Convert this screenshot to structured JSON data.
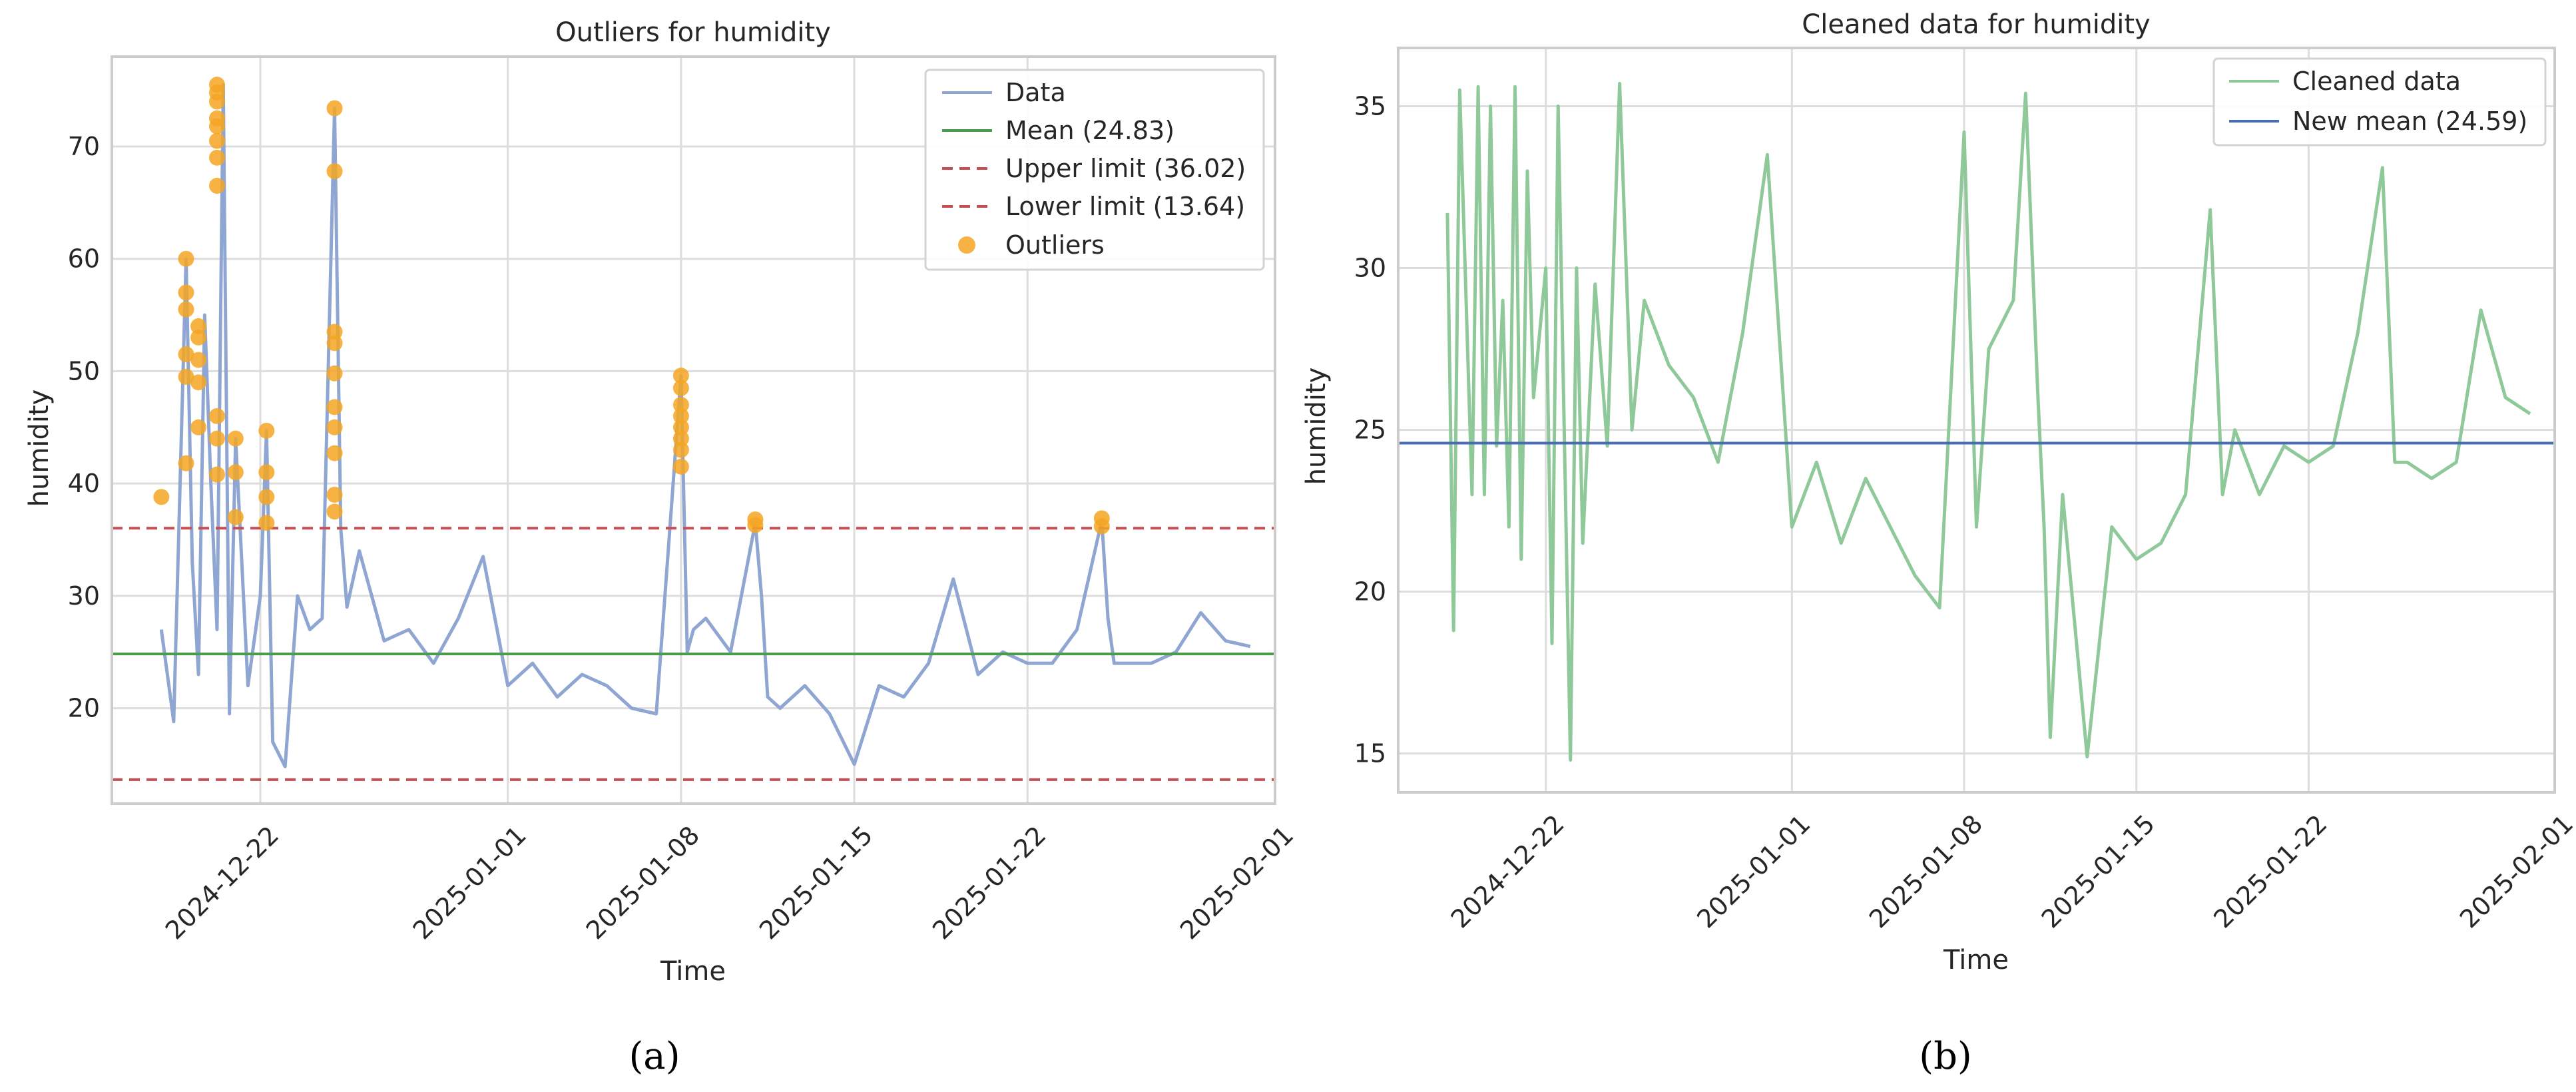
{
  "chart_data": [
    {
      "type": "line",
      "title": "Outliers for humidity",
      "xlabel": "Time",
      "ylabel": "humidity",
      "panel_label": "(a)",
      "xlim": [
        "2024-12-16",
        "2025-02-01"
      ],
      "ylim": [
        11.5,
        78
      ],
      "x_ticks": [
        "2024-12-22",
        "2025-01-01",
        "2025-01-08",
        "2025-01-15",
        "2025-01-22",
        "2025-02-01"
      ],
      "y_ticks": [
        20,
        30,
        40,
        50,
        60,
        70
      ],
      "grid": true,
      "legend_position": "top-right",
      "legend": [
        "Data",
        "Mean (24.83)",
        "Upper limit (36.02)",
        "Lower limit (13.64)",
        "Outliers"
      ],
      "series": [
        {
          "name": "Data",
          "color": "#8fa6d2",
          "x": [
            "2024-12-18",
            "2024-12-18T12",
            "2024-12-19",
            "2024-12-19T06",
            "2024-12-19T12",
            "2024-12-19T18",
            "2024-12-20",
            "2024-12-20T06",
            "2024-12-20T12",
            "2024-12-20T18",
            "2024-12-21",
            "2024-12-21T12",
            "2024-12-22",
            "2024-12-22T06",
            "2024-12-22T12",
            "2024-12-23",
            "2024-12-23T12",
            "2024-12-24",
            "2024-12-24T12",
            "2024-12-25",
            "2024-12-25T06",
            "2024-12-25T12",
            "2024-12-26",
            "2024-12-27",
            "2024-12-28",
            "2024-12-29",
            "2024-12-30",
            "2024-12-31",
            "2025-01-01",
            "2025-01-02",
            "2025-01-03",
            "2025-01-04",
            "2025-01-05",
            "2025-01-06",
            "2025-01-07",
            "2025-01-08",
            "2025-01-08T06",
            "2025-01-08T12",
            "2025-01-09",
            "2025-01-10",
            "2025-01-11",
            "2025-01-11T06",
            "2025-01-11T12",
            "2025-01-12",
            "2025-01-13",
            "2025-01-14",
            "2025-01-15",
            "2025-01-16",
            "2025-01-17",
            "2025-01-18",
            "2025-01-19",
            "2025-01-20",
            "2025-01-21",
            "2025-01-22",
            "2025-01-23",
            "2025-01-24",
            "2025-01-25",
            "2025-01-25T06",
            "2025-01-25T12",
            "2025-01-26",
            "2025-01-27",
            "2025-01-28",
            "2025-01-29",
            "2025-01-30",
            "2025-01-31"
          ],
          "values": [
            27,
            18.8,
            60,
            33,
            23,
            55,
            40,
            27,
            75.5,
            19.5,
            44,
            22,
            30,
            44.7,
            17,
            14.8,
            30,
            27,
            28,
            73.4,
            36,
            29,
            34,
            26,
            27,
            24,
            28,
            33.5,
            22,
            24,
            21,
            23,
            22,
            20,
            19.5,
            49.6,
            25,
            27,
            28,
            25,
            36.5,
            30,
            21,
            20,
            22,
            19.5,
            15,
            22,
            21,
            24,
            31.5,
            23,
            25,
            24,
            24,
            27,
            36.7,
            28,
            24,
            24,
            24,
            25,
            28.5,
            26,
            25.5
          ]
        },
        {
          "name": "Mean (24.83)",
          "color": "#4c9a4c",
          "y": 24.83
        },
        {
          "name": "Upper limit (36.02)",
          "color": "#c44e52",
          "y": 36.02
        },
        {
          "name": "Lower limit (13.64)",
          "color": "#c44e52",
          "y": 13.64
        },
        {
          "name": "Outliers",
          "color": "#f5a623",
          "x": [
            "2024-12-18",
            "2024-12-19",
            "2024-12-19",
            "2024-12-19",
            "2024-12-19",
            "2024-12-19",
            "2024-12-19",
            "2024-12-19T12",
            "2024-12-19T12",
            "2024-12-19T12",
            "2024-12-19T12",
            "2024-12-19T12",
            "2024-12-20T06",
            "2024-12-20T06",
            "2024-12-20T06",
            "2024-12-20T06",
            "2024-12-20T06",
            "2024-12-20T06",
            "2024-12-20T06",
            "2024-12-20T06",
            "2024-12-20T06",
            "2024-12-20T06",
            "2024-12-20T06",
            "2024-12-21",
            "2024-12-21",
            "2024-12-21",
            "2024-12-22T06",
            "2024-12-22T06",
            "2024-12-22T06",
            "2024-12-22T06",
            "2024-12-25",
            "2024-12-25",
            "2024-12-25",
            "2024-12-25",
            "2024-12-25",
            "2024-12-25",
            "2024-12-25",
            "2024-12-25",
            "2024-12-25",
            "2024-12-25",
            "2025-01-08",
            "2025-01-08",
            "2025-01-08",
            "2025-01-08",
            "2025-01-08",
            "2025-01-08",
            "2025-01-08",
            "2025-01-08",
            "2025-01-11",
            "2025-01-11",
            "2025-01-25",
            "2025-01-25"
          ],
          "values": [
            38.8,
            60,
            57,
            55.5,
            51.5,
            49.5,
            41.8,
            54,
            53,
            51,
            49,
            45,
            75.5,
            74.8,
            74,
            72.5,
            71.8,
            70.5,
            69,
            66.5,
            46,
            44,
            40.8,
            44,
            41,
            37,
            44.7,
            41,
            38.8,
            36.5,
            73.4,
            67.8,
            53.5,
            52.5,
            49.8,
            46.8,
            45,
            42.7,
            39,
            37.5,
            49.6,
            48.5,
            47,
            46,
            45,
            44,
            43,
            41.5,
            36.8,
            36.3,
            36.9,
            36.2
          ]
        }
      ]
    },
    {
      "type": "line",
      "title": "Cleaned data for humidity",
      "xlabel": "Time",
      "ylabel": "humidity",
      "panel_label": "(b)",
      "xlim": [
        "2024-12-16",
        "2025-02-01"
      ],
      "ylim": [
        13.8,
        36.8
      ],
      "x_ticks": [
        "2024-12-22",
        "2025-01-01",
        "2025-01-08",
        "2025-01-15",
        "2025-01-22",
        "2025-02-01"
      ],
      "y_ticks": [
        15,
        20,
        25,
        30,
        35
      ],
      "grid": true,
      "legend_position": "top-right",
      "legend": [
        "Cleaned data",
        "New mean (24.59)"
      ],
      "series": [
        {
          "name": "Cleaned data",
          "color": "#8fc99a",
          "x": [
            "2024-12-18",
            "2024-12-18T06",
            "2024-12-18T12",
            "2024-12-19",
            "2024-12-19T06",
            "2024-12-19T12",
            "2024-12-19T18",
            "2024-12-20",
            "2024-12-20T06",
            "2024-12-20T12",
            "2024-12-20T18",
            "2024-12-21",
            "2024-12-21T06",
            "2024-12-21T12",
            "2024-12-22",
            "2024-12-22T06",
            "2024-12-22T12",
            "2024-12-23",
            "2024-12-23T06",
            "2024-12-23T12",
            "2024-12-24",
            "2024-12-24T12",
            "2024-12-25",
            "2024-12-25T12",
            "2024-12-26",
            "2024-12-27",
            "2024-12-28",
            "2024-12-29",
            "2024-12-30",
            "2024-12-31",
            "2025-01-01",
            "2025-01-02",
            "2025-01-03",
            "2025-01-04",
            "2025-01-05",
            "2025-01-06",
            "2025-01-07",
            "2025-01-08",
            "2025-01-08T12",
            "2025-01-09",
            "2025-01-10",
            "2025-01-10T12",
            "2025-01-11",
            "2025-01-11T06",
            "2025-01-11T12",
            "2025-01-12",
            "2025-01-13",
            "2025-01-14",
            "2025-01-15",
            "2025-01-16",
            "2025-01-17",
            "2025-01-18",
            "2025-01-18T12",
            "2025-01-19",
            "2025-01-20",
            "2025-01-21",
            "2025-01-22",
            "2025-01-23",
            "2025-01-24",
            "2025-01-25",
            "2025-01-25T12",
            "2025-01-26",
            "2025-01-27",
            "2025-01-28",
            "2025-01-29",
            "2025-01-30",
            "2025-01-31"
          ],
          "values": [
            31.7,
            18.8,
            35.5,
            23,
            35.6,
            23,
            35,
            24.5,
            29,
            22,
            35.6,
            21,
            33,
            26,
            30,
            18.4,
            35,
            14.8,
            30,
            21.5,
            29.5,
            24.5,
            35.7,
            25,
            29,
            27,
            26,
            24,
            28,
            33.5,
            22,
            24,
            21.5,
            23.5,
            22,
            20.5,
            19.5,
            34.2,
            22,
            27.5,
            29,
            35.4,
            26,
            22,
            15.5,
            23,
            14.9,
            22,
            21,
            21.5,
            23,
            31.8,
            23,
            25,
            23,
            24.5,
            24,
            24.5,
            28,
            33.1,
            24,
            24,
            23.5,
            24,
            28.7,
            26,
            25.5
          ]
        },
        {
          "name": "New mean (24.59)",
          "color": "#4a6cb0",
          "y": 24.59
        }
      ]
    }
  ]
}
